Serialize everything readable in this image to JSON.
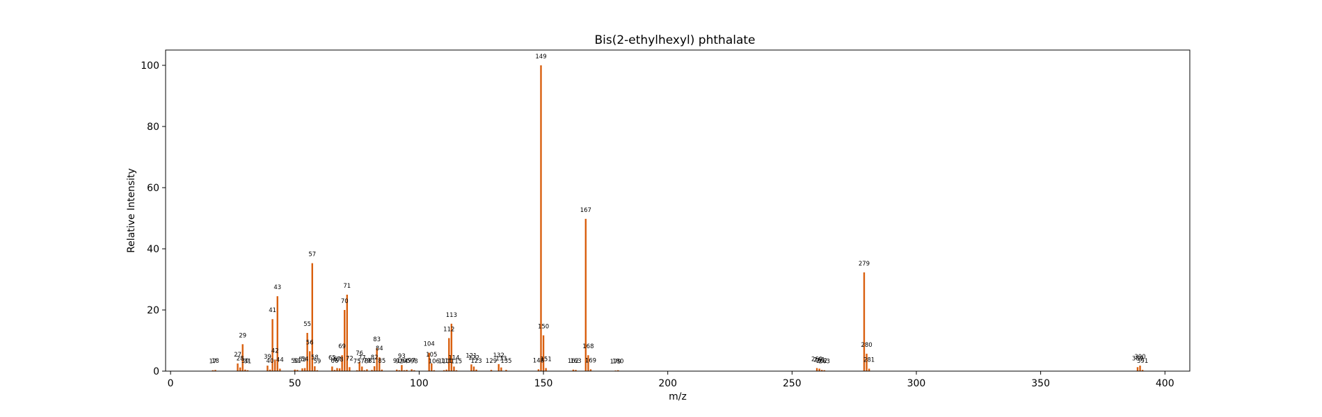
{
  "chart_data": {
    "type": "bar",
    "title": "Bis(2-ethylhexyl) phthalate",
    "xlabel": "m/z",
    "ylabel": "Relative Intensity",
    "xlim": [
      -2,
      410
    ],
    "ylim": [
      0,
      105
    ],
    "xticks": [
      0,
      50,
      100,
      150,
      200,
      250,
      300,
      350,
      400
    ],
    "yticks": [
      0,
      20,
      40,
      60,
      80,
      100
    ],
    "grid": false,
    "legend": "none",
    "bar_color": "#d95f0e",
    "peaks": [
      {
        "x": 17,
        "y": 0.3
      },
      {
        "x": 18,
        "y": 0.4
      },
      {
        "x": 27,
        "y": 2.5
      },
      {
        "x": 28,
        "y": 1.2
      },
      {
        "x": 29,
        "y": 8.8
      },
      {
        "x": 30,
        "y": 0.5
      },
      {
        "x": 31,
        "y": 0.3
      },
      {
        "x": 39,
        "y": 1.8
      },
      {
        "x": 40,
        "y": 0.5
      },
      {
        "x": 41,
        "y": 17.0
      },
      {
        "x": 42,
        "y": 3.8
      },
      {
        "x": 43,
        "y": 24.5
      },
      {
        "x": 44,
        "y": 0.8
      },
      {
        "x": 50,
        "y": 0.5
      },
      {
        "x": 51,
        "y": 0.4
      },
      {
        "x": 53,
        "y": 0.9
      },
      {
        "x": 54,
        "y": 1.0
      },
      {
        "x": 55,
        "y": 12.5
      },
      {
        "x": 56,
        "y": 6.5
      },
      {
        "x": 57,
        "y": 35.3
      },
      {
        "x": 58,
        "y": 1.6
      },
      {
        "x": 59,
        "y": 0.3
      },
      {
        "x": 65,
        "y": 1.5
      },
      {
        "x": 66,
        "y": 0.4
      },
      {
        "x": 67,
        "y": 1.0
      },
      {
        "x": 68,
        "y": 0.9
      },
      {
        "x": 69,
        "y": 5.2
      },
      {
        "x": 70,
        "y": 20.0
      },
      {
        "x": 71,
        "y": 25.0
      },
      {
        "x": 72,
        "y": 1.3
      },
      {
        "x": 75,
        "y": 0.3
      },
      {
        "x": 76,
        "y": 3.0
      },
      {
        "x": 77,
        "y": 1.5
      },
      {
        "x": 78,
        "y": 0.3
      },
      {
        "x": 79,
        "y": 0.6
      },
      {
        "x": 81,
        "y": 0.4
      },
      {
        "x": 82,
        "y": 1.6
      },
      {
        "x": 83,
        "y": 7.5
      },
      {
        "x": 84,
        "y": 4.5
      },
      {
        "x": 85,
        "y": 0.5
      },
      {
        "x": 91,
        "y": 0.5
      },
      {
        "x": 92,
        "y": 0.3
      },
      {
        "x": 93,
        "y": 2.0
      },
      {
        "x": 94,
        "y": 0.3
      },
      {
        "x": 95,
        "y": 0.4
      },
      {
        "x": 97,
        "y": 0.6
      },
      {
        "x": 98,
        "y": 0.3
      },
      {
        "x": 104,
        "y": 6.0
      },
      {
        "x": 105,
        "y": 2.5
      },
      {
        "x": 106,
        "y": 0.3
      },
      {
        "x": 110,
        "y": 0.3
      },
      {
        "x": 111,
        "y": 0.5
      },
      {
        "x": 112,
        "y": 10.8
      },
      {
        "x": 113,
        "y": 15.5
      },
      {
        "x": 114,
        "y": 1.5
      },
      {
        "x": 115,
        "y": 0.3
      },
      {
        "x": 121,
        "y": 2.2
      },
      {
        "x": 122,
        "y": 1.5
      },
      {
        "x": 123,
        "y": 0.5
      },
      {
        "x": 129,
        "y": 0.4
      },
      {
        "x": 132,
        "y": 2.3
      },
      {
        "x": 133,
        "y": 1.2
      },
      {
        "x": 135,
        "y": 0.4
      },
      {
        "x": 148,
        "y": 0.6
      },
      {
        "x": 149,
        "y": 100.0
      },
      {
        "x": 150,
        "y": 11.7
      },
      {
        "x": 151,
        "y": 1.0
      },
      {
        "x": 162,
        "y": 0.5
      },
      {
        "x": 163,
        "y": 0.4
      },
      {
        "x": 167,
        "y": 49.8
      },
      {
        "x": 168,
        "y": 5.2
      },
      {
        "x": 169,
        "y": 0.6
      },
      {
        "x": 179,
        "y": 0.2
      },
      {
        "x": 180,
        "y": 0.3
      },
      {
        "x": 260,
        "y": 1.0
      },
      {
        "x": 261,
        "y": 0.8
      },
      {
        "x": 262,
        "y": 0.4
      },
      {
        "x": 263,
        "y": 0.3
      },
      {
        "x": 279,
        "y": 32.3
      },
      {
        "x": 280,
        "y": 5.7
      },
      {
        "x": 281,
        "y": 0.8
      },
      {
        "x": 389,
        "y": 1.3
      },
      {
        "x": 390,
        "y": 1.8
      },
      {
        "x": 391,
        "y": 0.4
      }
    ]
  }
}
